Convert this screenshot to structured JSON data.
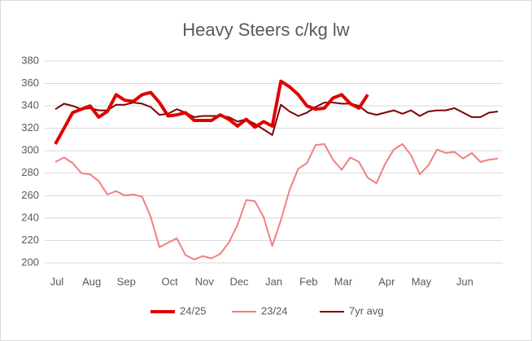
{
  "chart_data": {
    "type": "line",
    "title": "Heavy Steers c/kg lw",
    "categories": [
      "Jul",
      null,
      null,
      null,
      "Aug",
      null,
      null,
      null,
      "Sep",
      null,
      null,
      null,
      null,
      "Oct",
      null,
      null,
      null,
      "Nov",
      null,
      null,
      null,
      "Dec",
      null,
      null,
      null,
      "Jan",
      null,
      null,
      null,
      "Feb",
      null,
      null,
      null,
      "Mar",
      null,
      null,
      null,
      null,
      "Apr",
      null,
      null,
      null,
      "May",
      null,
      null,
      null,
      null,
      "Jun",
      null,
      null,
      null,
      null
    ],
    "series": [
      {
        "name": "24/25",
        "color": "#e00000",
        "width": 4,
        "values": [
          306,
          320,
          334,
          337,
          340,
          330,
          335,
          350,
          345,
          344,
          350,
          352,
          343,
          331,
          332,
          334,
          327,
          327,
          327,
          332,
          328,
          322,
          328,
          321,
          326,
          322,
          362,
          357,
          350,
          340,
          337,
          338,
          347,
          350,
          342,
          338,
          350,
          null,
          null,
          null,
          null,
          null,
          null,
          null,
          null,
          null,
          null,
          null,
          null,
          null,
          null,
          null
        ]
      },
      {
        "name": "23/24",
        "color": "#f08080",
        "width": 2,
        "values": [
          290,
          294,
          289,
          280,
          279,
          273,
          261,
          264,
          260,
          261,
          259,
          241,
          214,
          218,
          222,
          207,
          203,
          206,
          204,
          208,
          218,
          234,
          256,
          255,
          241,
          215,
          238,
          265,
          284,
          289,
          305,
          306,
          292,
          283,
          294,
          290,
          276,
          271,
          288,
          301,
          306,
          296,
          279,
          287,
          301,
          298,
          299,
          293,
          298,
          290,
          292,
          293
        ]
      },
      {
        "name": "7yr avg",
        "color": "#7f0000",
        "width": 2,
        "values": [
          337,
          342,
          340,
          337,
          338,
          336,
          336,
          341,
          341,
          343,
          342,
          339,
          332,
          333,
          337,
          334,
          330,
          331,
          331,
          331,
          330,
          326,
          328,
          324,
          319,
          314,
          341,
          335,
          331,
          334,
          339,
          343,
          343,
          342,
          342,
          340,
          334,
          332,
          334,
          336,
          333,
          336,
          331,
          335,
          336,
          336,
          338,
          334,
          330,
          330,
          334,
          335
        ]
      }
    ],
    "ylim": [
      200,
      380
    ],
    "yticks": [
      200,
      220,
      240,
      260,
      280,
      300,
      320,
      340,
      360,
      380
    ],
    "grid": true,
    "legend": "bottom"
  }
}
